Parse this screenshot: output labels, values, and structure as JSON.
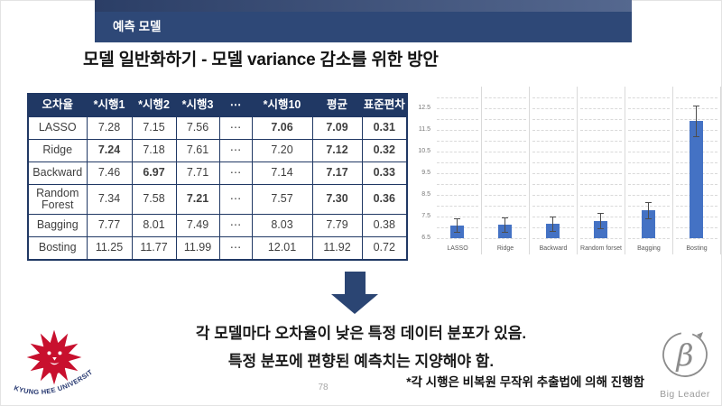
{
  "header": {
    "bar_label": "예측 모델"
  },
  "title": "모델 일반화하기 - 모델 variance 감소를 위한 방안",
  "table": {
    "columns": [
      "오차율",
      "*시행1",
      "*시행2",
      "*시행3",
      "⋯",
      "*시행10",
      "평균",
      "표준편차"
    ],
    "rows": [
      {
        "label": "LASSO",
        "cells": [
          {
            "t": "7.28"
          },
          {
            "t": "7.15"
          },
          {
            "t": "7.56"
          },
          {
            "t": "⋯"
          },
          {
            "t": "7.06",
            "c": "red"
          },
          {
            "t": "7.09",
            "c": "blue"
          },
          {
            "t": "0.31",
            "c": "blue"
          }
        ]
      },
      {
        "label": "Ridge",
        "cells": [
          {
            "t": "7.24",
            "c": "red"
          },
          {
            "t": "7.18"
          },
          {
            "t": "7.61"
          },
          {
            "t": "⋯"
          },
          {
            "t": "7.20"
          },
          {
            "t": "7.12",
            "c": "blue"
          },
          {
            "t": "0.32",
            "c": "blue"
          }
        ]
      },
      {
        "label": "Backward",
        "cells": [
          {
            "t": "7.46"
          },
          {
            "t": "6.97",
            "c": "red"
          },
          {
            "t": "7.71"
          },
          {
            "t": "⋯"
          },
          {
            "t": "7.14"
          },
          {
            "t": "7.17",
            "c": "blue"
          },
          {
            "t": "0.33",
            "c": "blue"
          }
        ]
      },
      {
        "label": "Random Forest",
        "cells": [
          {
            "t": "7.34"
          },
          {
            "t": "7.58"
          },
          {
            "t": "7.21",
            "c": "red"
          },
          {
            "t": "⋯"
          },
          {
            "t": "7.57"
          },
          {
            "t": "7.30",
            "c": "blue"
          },
          {
            "t": "0.36",
            "c": "blue"
          }
        ]
      },
      {
        "label": "Bagging",
        "cells": [
          {
            "t": "7.77"
          },
          {
            "t": "8.01"
          },
          {
            "t": "7.49"
          },
          {
            "t": "⋯"
          },
          {
            "t": "8.03"
          },
          {
            "t": "7.79"
          },
          {
            "t": "0.38"
          }
        ]
      },
      {
        "label": "Bosting",
        "cells": [
          {
            "t": "11.25"
          },
          {
            "t": "11.77"
          },
          {
            "t": "11.99"
          },
          {
            "t": "⋯"
          },
          {
            "t": "12.01"
          },
          {
            "t": "11.92"
          },
          {
            "t": "0.72"
          }
        ]
      }
    ]
  },
  "chart_data": {
    "type": "bar",
    "categories": [
      "LASSO",
      "Ridge",
      "Backward",
      "Random forset",
      "Bagging",
      "Bosting"
    ],
    "values": [
      7.09,
      7.12,
      7.17,
      7.3,
      7.79,
      11.92
    ],
    "error_bars": [
      0.31,
      0.32,
      0.33,
      0.36,
      0.38,
      0.72
    ],
    "title": "",
    "xlabel": "",
    "ylabel": "",
    "ylim": [
      6.5,
      13.0
    ],
    "yticks": [
      12.5,
      11.5,
      10.5,
      9.5,
      8.5,
      7.5,
      6.5
    ],
    "gridline_step": 0.5,
    "grid": "dashed-horizontal",
    "legend": false,
    "bar_color": "#4472c4"
  },
  "arrow": {
    "direction": "down"
  },
  "conclusion": {
    "line1": "각 모델마다 오차율이 낮은 특정 데이터 분포가 있음.",
    "line2": "특정 분포에 편향된 예측치는 지양해야 함."
  },
  "footnote": "*각 시행은 비복원 무작위 추출법에 의해 진행함",
  "page_number": "78",
  "logos": {
    "left": {
      "name": "Kyung Hee University",
      "arc_text": "KYUNG HEE UNIVERSITY"
    },
    "right": {
      "name": "Big Leader",
      "label": "Big Leader",
      "monogram": "β"
    }
  },
  "colors": {
    "header_navy": "#203864",
    "bar_accent": "#2e4877",
    "chart_bar": "#4472c4",
    "highlight_red": "#e23a2e",
    "highlight_blue": "#2b82c9",
    "khu_red": "#c8102e"
  }
}
